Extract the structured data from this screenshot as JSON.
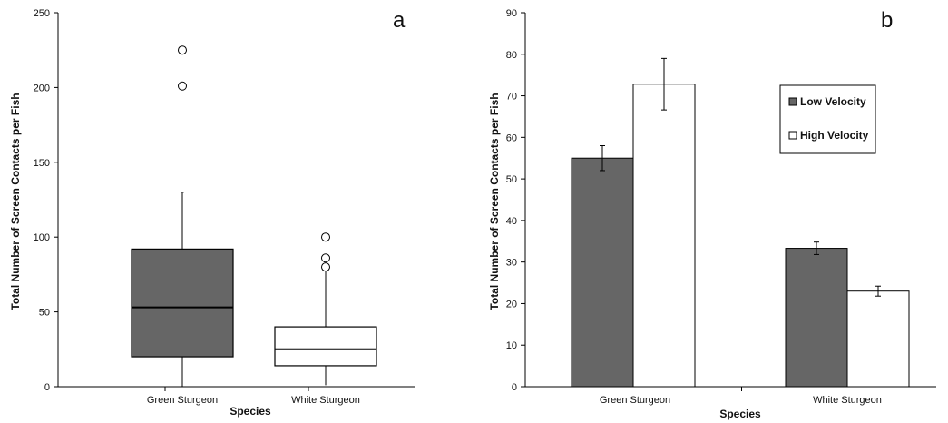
{
  "chart_data": [
    {
      "type": "box",
      "panel_label": "a",
      "title": "",
      "xlabel": "Species",
      "ylabel": "Total Number of Screen Contacts per Fish",
      "ylim": [
        0,
        250
      ],
      "yticks": [
        0,
        50,
        100,
        150,
        200,
        250
      ],
      "categories": [
        "Green Sturgeon",
        "White Sturgeon"
      ],
      "boxes": [
        {
          "category": "Green Sturgeon",
          "whisker_low": 0,
          "q1": 20,
          "median": 53,
          "q3": 92,
          "whisker_high": 130,
          "outliers": [
            201,
            225
          ],
          "color": "#666666"
        },
        {
          "category": "White Sturgeon",
          "whisker_low": 1,
          "q1": 14,
          "median": 25,
          "q3": 40,
          "whisker_high": 78,
          "outliers": [
            80,
            86,
            100
          ],
          "color": "#ffffff"
        }
      ],
      "grid": false
    },
    {
      "type": "bar",
      "panel_label": "b",
      "title": "",
      "xlabel": "Species",
      "ylabel": "Total Number of  Screen Contacts per Fish",
      "ylim": [
        0,
        90
      ],
      "yticks": [
        0,
        10,
        20,
        30,
        40,
        50,
        60,
        70,
        80,
        90
      ],
      "categories": [
        "Green Sturgeon",
        "White Sturgeon"
      ],
      "series": [
        {
          "name": "Low Velocity",
          "color": "#666666",
          "values": [
            55,
            33.3
          ],
          "errors": [
            3,
            1.5
          ]
        },
        {
          "name": "High Velocity",
          "color": "#ffffff",
          "values": [
            72.8,
            23
          ],
          "errors": [
            6.2,
            1.2
          ]
        }
      ],
      "legend_position": "top-right",
      "grid": false
    }
  ]
}
